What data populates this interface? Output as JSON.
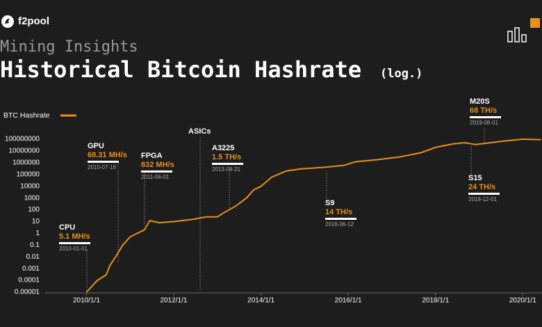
{
  "brand": "f2pool",
  "chart_data": {
    "type": "line",
    "subtitle": "Mining Insights",
    "title": "Historical Bitcoin Hashrate",
    "title_note": "(log.)",
    "log_scale": true,
    "grid": false,
    "x": [
      "2010-01-01",
      "2010-04-01",
      "2010-06-15",
      "2010-07-18",
      "2010-09-01",
      "2010-11-01",
      "2011-01-01",
      "2011-03-01",
      "2011-05-01",
      "2011-06-15",
      "2011-09-01",
      "2012-01-01",
      "2012-06-01",
      "2012-10-01",
      "2013-01-01",
      "2013-03-01",
      "2013-06-01",
      "2013-09-01",
      "2013-11-01",
      "2014-01-01",
      "2014-04-01",
      "2014-08-01",
      "2014-12-01",
      "2015-06-01",
      "2015-12-01",
      "2016-03-01",
      "2016-09-01",
      "2017-03-01",
      "2017-09-01",
      "2018-01-01",
      "2018-06-01",
      "2018-09-01",
      "2018-12-01",
      "2019-03-01",
      "2019-08-01",
      "2020-01-01",
      "2020-06-01"
    ],
    "series": [
      {
        "name": "BTC Hashrate",
        "color": "#e8901c",
        "values": [
          1e-05,
          0.0001,
          0.0003,
          0.002,
          0.01,
          0.1,
          0.5,
          1,
          2,
          12,
          8,
          10,
          15,
          25,
          25,
          60,
          200,
          1000,
          5000,
          10000,
          60000,
          200000,
          300000,
          400000,
          600000,
          1200000,
          1800000,
          3000000,
          7000000,
          20000000,
          40000000,
          50000000,
          35000000,
          45000000,
          70000000,
          100000000,
          90000000
        ]
      }
    ],
    "xlim": [
      "2009-01-20",
      "2020-06-10"
    ],
    "xticks": [
      {
        "value": "2010-01-01",
        "label": "2010/1/1"
      },
      {
        "value": "2012-01-01",
        "label": "2012/1/1"
      },
      {
        "value": "2014-01-01",
        "label": "2014/1/1"
      },
      {
        "value": "2016-01-01",
        "label": "2016/1/1"
      },
      {
        "value": "2018-01-01",
        "label": "2018/1/1"
      },
      {
        "value": "2020-01-01",
        "label": "2020/1/1"
      }
    ],
    "ylim": [
      1e-05,
      100000000
    ],
    "yticks": [
      1e-05,
      0.0001,
      0.001,
      0.01,
      0.1,
      1,
      10,
      100,
      1000,
      10000,
      100000,
      1000000,
      10000000,
      100000000
    ],
    "annotations": [
      {
        "label": "CPU",
        "value": "5.1 MH/s",
        "date": "2010-01-01"
      },
      {
        "label": "GPU",
        "value": "68.31 MH/s",
        "date": "2010-07-18"
      },
      {
        "label": "FPGA",
        "value": "832 MH/s",
        "date": "2011-06-01"
      },
      {
        "label": "ASICs"
      },
      {
        "label": "A3225",
        "value": "1.5 TH/s",
        "date": "2013-08-21"
      },
      {
        "label": "S9",
        "value": "14 TH/s",
        "date": "2016-06-12"
      },
      {
        "label": "S15",
        "value": "24 TH/s",
        "date": "2018-12-01"
      },
      {
        "label": "M20S",
        "value": "68 TH/s",
        "date": "2019-08-01"
      }
    ]
  }
}
